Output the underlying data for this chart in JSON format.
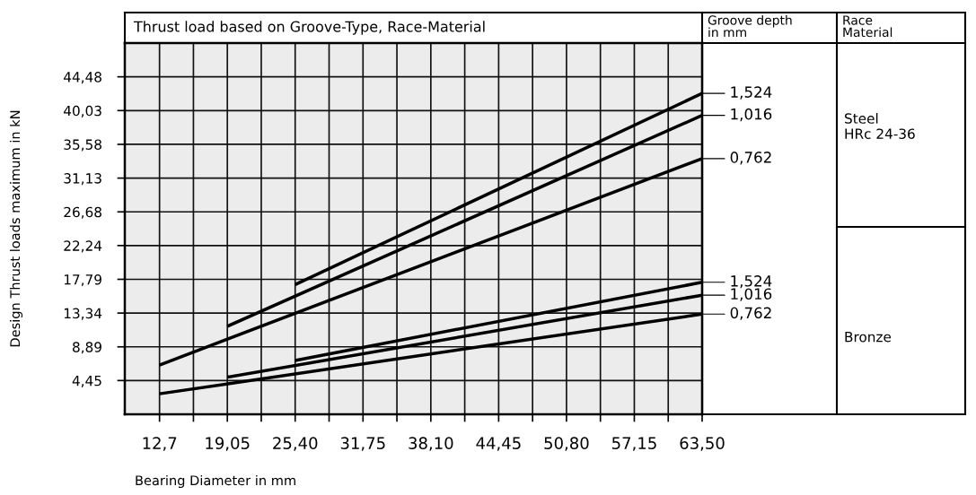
{
  "chart_data": {
    "type": "line",
    "title": "Thrust load based on Groove-Type, Race-Material",
    "xlabel": "Bearing Diameter in mm",
    "ylabel": "Design Thrust loads maximum in kN",
    "annotations": [
      "Groove depth\nin mm",
      "Race\nMaterial",
      "Steel\nHRc 24-36",
      "Bronze"
    ],
    "xlim": [
      9.45,
      63.5
    ],
    "ylim": [
      0,
      48.93
    ],
    "xticks": [
      {
        "value": 12.7,
        "label": "12,7"
      },
      {
        "value": 15.875,
        "label": null
      },
      {
        "value": 19.05,
        "label": "19,05"
      },
      {
        "value": 22.225,
        "label": null
      },
      {
        "value": 25.4,
        "label": "25,40"
      },
      {
        "value": 28.575,
        "label": null
      },
      {
        "value": 31.75,
        "label": "31,75"
      },
      {
        "value": 34.925,
        "label": null
      },
      {
        "value": 38.1,
        "label": "38,10"
      },
      {
        "value": 41.275,
        "label": null
      },
      {
        "value": 44.45,
        "label": "44,45"
      },
      {
        "value": 47.625,
        "label": null
      },
      {
        "value": 50.8,
        "label": "50,80"
      },
      {
        "value": 53.975,
        "label": null
      },
      {
        "value": 57.15,
        "label": "57,15"
      },
      {
        "value": 60.325,
        "label": null
      },
      {
        "value": 63.5,
        "label": "63,50"
      }
    ],
    "yticks": [
      {
        "value": 4.45,
        "label": "4,45"
      },
      {
        "value": 8.89,
        "label": "8,89"
      },
      {
        "value": 13.34,
        "label": "13,34"
      },
      {
        "value": 17.79,
        "label": "17,79"
      },
      {
        "value": 22.24,
        "label": "22,24"
      },
      {
        "value": 26.68,
        "label": "26,68"
      },
      {
        "value": 31.13,
        "label": "31,13"
      },
      {
        "value": 35.58,
        "label": "35,58"
      },
      {
        "value": 40.03,
        "label": "40,03"
      },
      {
        "value": 44.48,
        "label": "44,48"
      }
    ],
    "grid": true,
    "legend": "right",
    "marker": "none",
    "line_style": "solid",
    "series": [
      {
        "name": "1,524",
        "color": "#000000",
        "x": [
          25.4,
          63.5
        ],
        "values": [
          17.1,
          42.3
        ]
      },
      {
        "name": "1,016",
        "color": "#000000",
        "x": [
          19.05,
          63.5
        ],
        "values": [
          11.6,
          39.4
        ]
      },
      {
        "name": "0,762",
        "color": "#000000",
        "x": [
          12.7,
          63.5
        ],
        "values": [
          6.5,
          33.7
        ]
      },
      {
        "name": "1,524",
        "color": "#000000",
        "x": [
          25.4,
          63.5
        ],
        "values": [
          7.1,
          17.4
        ]
      },
      {
        "name": "1,016",
        "color": "#000000",
        "x": [
          19.05,
          63.5
        ],
        "values": [
          4.9,
          15.7
        ]
      },
      {
        "name": "0,762",
        "color": "#000000",
        "x": [
          12.7,
          63.5
        ],
        "values": [
          2.7,
          13.2
        ]
      }
    ]
  }
}
